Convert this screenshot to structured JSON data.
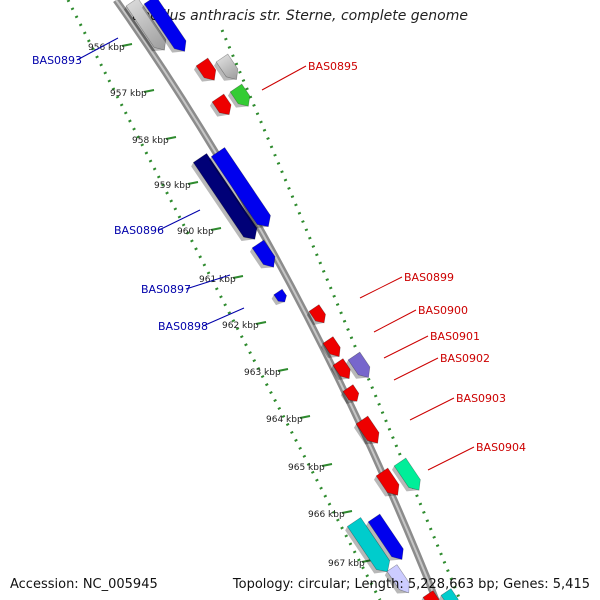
{
  "title": "Bacillus anthracis str. Sterne, complete genome",
  "footer": {
    "accession": "Accession: NC_005945",
    "topology": "Topology: circular; Length: 5,228,663 bp; Genes: 5,415"
  },
  "colors": {
    "backbone": "#9a9a9a",
    "tick": "#2e8b2e",
    "label_forward": "#cc0000",
    "label_reverse": "#0000aa"
  },
  "kbp_ticks": [
    "956 kbp",
    "957 kbp",
    "958 kbp",
    "959 kbp",
    "960 kbp",
    "961 kbp",
    "962 kbp",
    "963 kbp",
    "964 kbp",
    "965 kbp",
    "966 kbp",
    "967 kbp"
  ],
  "genes": [
    {
      "label": "BAS0893",
      "strand": "reverse",
      "color": "#0000ee"
    },
    {
      "label": "BAS0895",
      "strand": "forward",
      "color": "#ee0000"
    },
    {
      "label": "BAS0896",
      "strand": "reverse",
      "color": "#000077"
    },
    {
      "label": "BAS0897",
      "strand": "reverse",
      "color": "#0000ee"
    },
    {
      "label": "BAS0898",
      "strand": "reverse",
      "color": "#0000ee"
    },
    {
      "label": "BAS0899",
      "strand": "forward",
      "color": "#ee0000"
    },
    {
      "label": "BAS0900",
      "strand": "forward",
      "color": "#ee0000"
    },
    {
      "label": "BAS0901",
      "strand": "forward",
      "color": "#7766cc"
    },
    {
      "label": "BAS0902",
      "strand": "forward",
      "color": "#ee0000"
    },
    {
      "label": "BAS0903",
      "strand": "forward",
      "color": "#ee0000"
    },
    {
      "label": "BAS0904",
      "strand": "forward",
      "color": "#00ee99"
    }
  ]
}
